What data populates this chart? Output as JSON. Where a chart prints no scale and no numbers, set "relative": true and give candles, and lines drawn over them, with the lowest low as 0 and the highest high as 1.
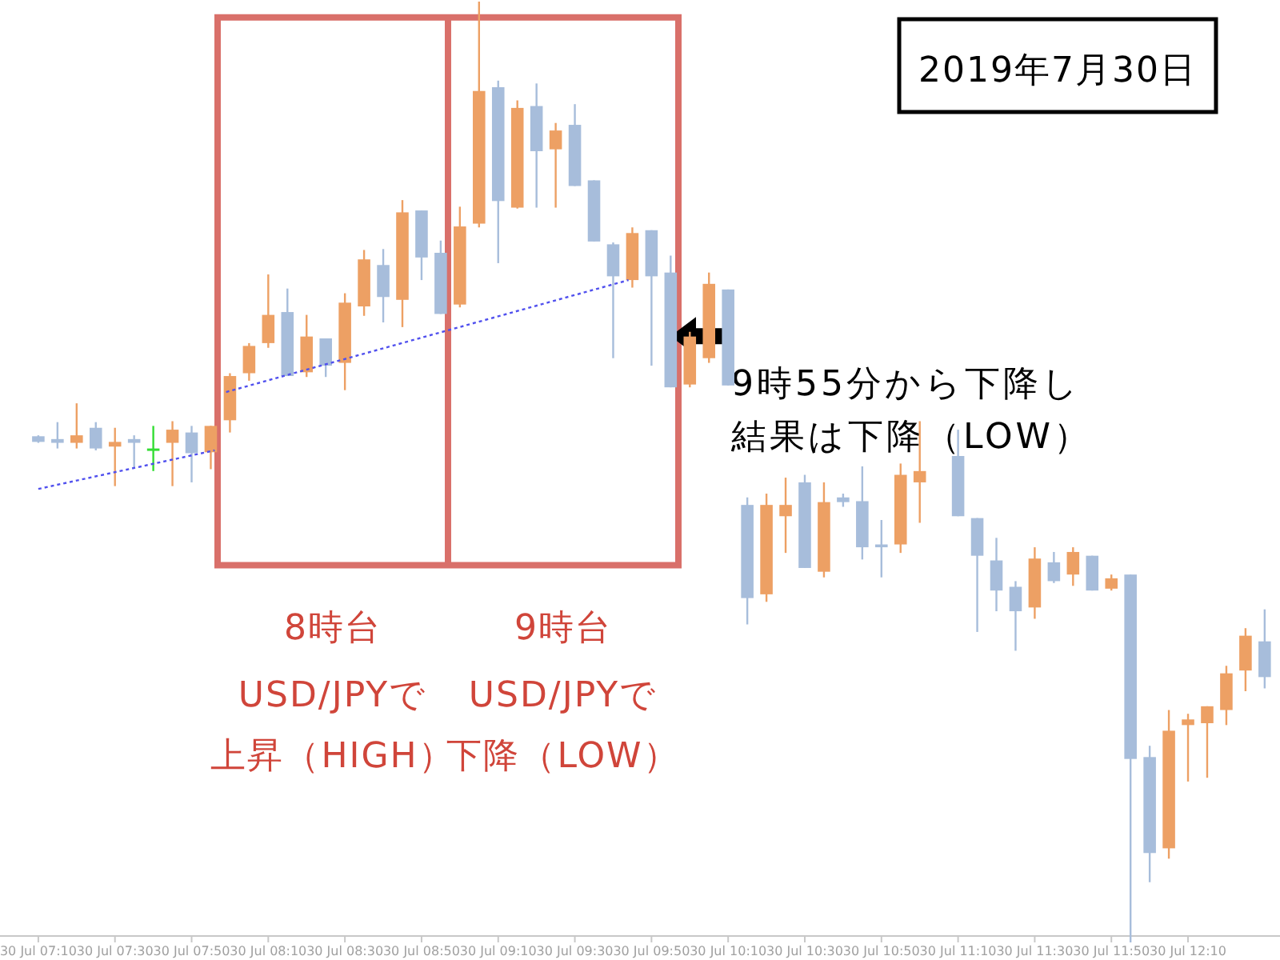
{
  "chart_data": {
    "type": "candlestick",
    "relative": true,
    "x": [
      "2019-07-30T07:10",
      "2019-07-30T07:15",
      "2019-07-30T07:20",
      "2019-07-30T07:25",
      "2019-07-30T07:30",
      "2019-07-30T07:35",
      "2019-07-30T07:40",
      "2019-07-30T07:45",
      "2019-07-30T07:50",
      "2019-07-30T07:55",
      "2019-07-30T08:00",
      "2019-07-30T08:05",
      "2019-07-30T08:10",
      "2019-07-30T08:15",
      "2019-07-30T08:20",
      "2019-07-30T08:25",
      "2019-07-30T08:30",
      "2019-07-30T08:35",
      "2019-07-30T08:40",
      "2019-07-30T08:45",
      "2019-07-30T08:50",
      "2019-07-30T08:55",
      "2019-07-30T09:00",
      "2019-07-30T09:05",
      "2019-07-30T09:10",
      "2019-07-30T09:15",
      "2019-07-30T09:20",
      "2019-07-30T09:25",
      "2019-07-30T09:30",
      "2019-07-30T09:35",
      "2019-07-30T09:40",
      "2019-07-30T09:45",
      "2019-07-30T09:50",
      "2019-07-30T09:55",
      "2019-07-30T10:00",
      "2019-07-30T10:05",
      "2019-07-30T10:10",
      "2019-07-30T10:15",
      "2019-07-30T10:20",
      "2019-07-30T10:25",
      "2019-07-30T10:30",
      "2019-07-30T10:35",
      "2019-07-30T10:40",
      "2019-07-30T10:45",
      "2019-07-30T10:50",
      "2019-07-30T10:55",
      "2019-07-30T11:00",
      "2019-07-30T11:10",
      "2019-07-30T11:15",
      "2019-07-30T11:20",
      "2019-07-30T11:25",
      "2019-07-30T11:30",
      "2019-07-30T11:35",
      "2019-07-30T11:40",
      "2019-07-30T11:45",
      "2019-07-30T11:50",
      "2019-07-30T11:55",
      "2019-07-30T12:00",
      "2019-07-30T12:05",
      "2019-07-30T12:10",
      "2019-07-30T12:15",
      "2019-07-30T12:20",
      "2019-07-30T12:25",
      "2019-07-30T12:30"
    ],
    "ohlc": [
      [
        0.538,
        0.539,
        0.531,
        0.532
      ],
      [
        0.535,
        0.553,
        0.525,
        0.531
      ],
      [
        0.531,
        0.573,
        0.525,
        0.539
      ],
      [
        0.547,
        0.553,
        0.523,
        0.525
      ],
      [
        0.527,
        0.547,
        0.485,
        0.532
      ],
      [
        0.535,
        0.539,
        0.505,
        0.531
      ],
      [
        0.525,
        0.549,
        0.501,
        0.525
      ],
      [
        0.531,
        0.554,
        0.485,
        0.545
      ],
      [
        0.542,
        0.549,
        0.489,
        0.52
      ],
      [
        0.521,
        0.549,
        0.503,
        0.549
      ],
      [
        0.555,
        0.605,
        0.542,
        0.602
      ],
      [
        0.605,
        0.637,
        0.597,
        0.634
      ],
      [
        0.637,
        0.71,
        0.632,
        0.667
      ],
      [
        0.67,
        0.695,
        0.602,
        0.602
      ],
      [
        0.606,
        0.667,
        0.601,
        0.644
      ],
      [
        0.642,
        0.642,
        0.601,
        0.613
      ],
      [
        0.616,
        0.69,
        0.587,
        0.68
      ],
      [
        0.676,
        0.736,
        0.666,
        0.726
      ],
      [
        0.72,
        0.737,
        0.659,
        0.686
      ],
      [
        0.683,
        0.789,
        0.654,
        0.776
      ],
      [
        0.778,
        0.778,
        0.704,
        0.728
      ],
      [
        0.733,
        0.746,
        0.668,
        0.668
      ],
      [
        0.678,
        0.782,
        0.675,
        0.761
      ],
      [
        0.764,
        1,
        0.76,
        0.905
      ],
      [
        0.909,
        0.916,
        0.722,
        0.788
      ],
      [
        0.781,
        0.895,
        0.78,
        0.887
      ],
      [
        0.889,
        0.913,
        0.781,
        0.841
      ],
      [
        0.843,
        0.871,
        0.781,
        0.863
      ],
      [
        0.869,
        0.891,
        0.804,
        0.804
      ],
      [
        0.81,
        0.81,
        0.745,
        0.745
      ],
      [
        0.742,
        0.744,
        0.621,
        0.708
      ],
      [
        0.704,
        0.76,
        0.696,
        0.754
      ],
      [
        0.757,
        0.757,
        0.613,
        0.708
      ],
      [
        0.712,
        0.73,
        0.59,
        0.59
      ],
      [
        0.593,
        0.649,
        0.59,
        0.644
      ],
      [
        0.621,
        0.712,
        0.616,
        0.7
      ],
      [
        0.694,
        0.694,
        0.592,
        0.592
      ],
      [
        0.465,
        0.473,
        0.338,
        0.366
      ],
      [
        0.37,
        0.477,
        0.362,
        0.465
      ],
      [
        0.453,
        0.494,
        0.414,
        0.465
      ],
      [
        0.489,
        0.497,
        0.398,
        0.398
      ],
      [
        0.394,
        0.489,
        0.388,
        0.468
      ],
      [
        0.473,
        0.477,
        0.463,
        0.468
      ],
      [
        0.469,
        0.506,
        0.407,
        0.42
      ],
      [
        0.423,
        0.449,
        0.388,
        0.42
      ],
      [
        0.423,
        0.509,
        0.414,
        0.497
      ],
      [
        0.489,
        0.554,
        0.446,
        0.501
      ],
      [
        0.517,
        0.545,
        0.453,
        0.453
      ],
      [
        0.451,
        0.451,
        0.33,
        0.411
      ],
      [
        0.406,
        0.43,
        0.352,
        0.374
      ],
      [
        0.378,
        0.384,
        0.31,
        0.352
      ],
      [
        0.356,
        0.42,
        0.344,
        0.408
      ],
      [
        0.404,
        0.415,
        0.382,
        0.384
      ],
      [
        0.391,
        0.42,
        0.379,
        0.415
      ],
      [
        0.411,
        0.411,
        0.374,
        0.374
      ],
      [
        0.376,
        0.391,
        0.374,
        0.387
      ],
      [
        0.391,
        0.391,
        0,
        0.195
      ],
      [
        0.197,
        0.209,
        0.064,
        0.095
      ],
      [
        0.1,
        0.247,
        0.089,
        0.225
      ],
      [
        0.231,
        0.243,
        0.171,
        0.237
      ],
      [
        0.233,
        0.251,
        0.175,
        0.251
      ],
      [
        0.247,
        0.294,
        0.231,
        0.286
      ],
      [
        0.289,
        0.334,
        0.267,
        0.326
      ],
      [
        0.32,
        0.354,
        0.27,
        0.282
      ]
    ],
    "colors": [
      "#a7bddb",
      "#a7bddb",
      "#eda064",
      "#a7bddb",
      "#eda064",
      "#a7bddb",
      "#33dd33",
      "#eda064",
      "#a7bddb",
      "#eda064",
      "#eda064",
      "#eda064",
      "#eda064",
      "#a7bddb",
      "#eda064",
      "#a7bddb",
      "#eda064",
      "#eda064",
      "#a7bddb",
      "#eda064",
      "#a7bddb",
      "#a7bddb",
      "#eda064",
      "#eda064",
      "#a7bddb",
      "#eda064",
      "#a7bddb",
      "#eda064",
      "#a7bddb",
      "#a7bddb",
      "#a7bddb",
      "#eda064",
      "#a7bddb",
      "#a7bddb",
      "#eda064",
      "#eda064",
      "#a7bddb",
      "#a7bddb",
      "#eda064",
      "#eda064",
      "#a7bddb",
      "#eda064",
      "#a7bddb",
      "#a7bddb",
      "#a7bddb",
      "#eda064",
      "#eda064",
      "#a7bddb",
      "#a7bddb",
      "#a7bddb",
      "#a7bddb",
      "#eda064",
      "#a7bddb",
      "#eda064",
      "#a7bddb",
      "#eda064",
      "#a7bddb",
      "#a7bddb",
      "#eda064",
      "#eda064",
      "#eda064",
      "#eda064",
      "#eda064",
      "#a7bddb"
    ],
    "series": [
      {
        "type": "line",
        "color": "#5050ee",
        "line_style": "dotted",
        "x": [
          "2019-07-30T07:10",
          "2019-07-30T07:56"
        ],
        "values": [
          0.482,
          0.523
        ]
      },
      {
        "type": "line",
        "color": "#5050ee",
        "line_style": "dotted",
        "x": [
          "2019-07-30T07:59",
          "2019-07-30T09:44"
        ],
        "values": [
          0.585,
          0.704
        ]
      }
    ],
    "xlim": [
      "2019-07-30T07:00",
      "2019-07-30T12:34"
    ],
    "xticks": [
      {
        "value": "2019-07-30T07:10",
        "label": "30 Jul 07:10"
      },
      {
        "value": "2019-07-30T07:30",
        "label": "30 Jul 07:30"
      },
      {
        "value": "2019-07-30T07:50",
        "label": "30 Jul 07:50"
      },
      {
        "value": "2019-07-30T08:10",
        "label": "30 Jul 08:10"
      },
      {
        "value": "2019-07-30T08:30",
        "label": "30 Jul 08:30"
      },
      {
        "value": "2019-07-30T08:50",
        "label": "30 Jul 08:50"
      },
      {
        "value": "2019-07-30T09:10",
        "label": "30 Jul 09:10"
      },
      {
        "value": "2019-07-30T09:30",
        "label": "30 Jul 09:30"
      },
      {
        "value": "2019-07-30T09:50",
        "label": "30 Jul 09:50"
      },
      {
        "value": "2019-07-30T10:10",
        "label": "30 Jul 10:10"
      },
      {
        "value": "2019-07-30T10:30",
        "label": "30 Jul 10:30"
      },
      {
        "value": "2019-07-30T10:50",
        "label": "30 Jul 10:50"
      },
      {
        "value": "2019-07-30T11:10",
        "label": "30 Jul 11:10"
      },
      {
        "value": "2019-07-30T11:30",
        "label": "30 Jul 11:30"
      },
      {
        "value": "2019-07-30T11:50",
        "label": "30 Jul 11:50"
      },
      {
        "value": "2019-07-30T12:10",
        "label": "30 Jul 12:10"
      }
    ],
    "annotations": [
      "2019年7月30日",
      "8時台",
      "USD/JPYで",
      "上昇（HIGH）",
      "9時台",
      "USD/JPYで",
      "下降（LOW）",
      "9時55分から下降し",
      "結果は下降（LOW）"
    ]
  }
}
